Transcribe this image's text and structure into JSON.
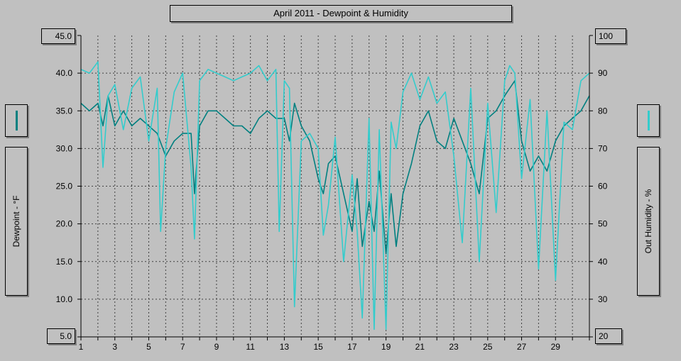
{
  "chart_data": {
    "type": "line",
    "title": "April 2011 - Dewpoint & Humidity",
    "xlabel": "",
    "x_ticks": [
      "1",
      "3",
      "5",
      "7",
      "9",
      "11",
      "13",
      "15",
      "17",
      "19",
      "21",
      "23",
      "25",
      "27",
      "29"
    ],
    "xlim": [
      1,
      31
    ],
    "left_axis": {
      "label": "Dewpoint - °F",
      "ylim": [
        5,
        45
      ],
      "ticks": [
        "45.0",
        "40.0",
        "35.0",
        "30.0",
        "25.0",
        "20.0",
        "15.0",
        "10.0",
        "5.0"
      ],
      "min_label": "5.0",
      "max_label": "45.0"
    },
    "right_axis": {
      "label": "Out Humidity - %",
      "ylim": [
        20,
        100
      ],
      "ticks": [
        "100",
        "90",
        "80",
        "70",
        "60",
        "50",
        "40",
        "30",
        "20"
      ],
      "min_label": "20",
      "max_label": "100"
    },
    "grid": true,
    "series": [
      {
        "axis": "left",
        "color": "#008080",
        "x": [
          1,
          1.5,
          2,
          2.3,
          2.6,
          3,
          3.5,
          4,
          4.5,
          5,
          5.5,
          6,
          6.5,
          7,
          7.5,
          7.7,
          8,
          8.5,
          9,
          9.5,
          10,
          10.5,
          11,
          11.5,
          12,
          12.5,
          13,
          13.3,
          13.6,
          14,
          14.5,
          15,
          15.3,
          15.6,
          16,
          16.5,
          17,
          17.3,
          17.6,
          18,
          18.3,
          18.6,
          19,
          19.3,
          19.6,
          20,
          20.5,
          21,
          21.5,
          22,
          22.5,
          23,
          23.5,
          24,
          24.5,
          25,
          25.5,
          26,
          26.3,
          26.6,
          27,
          27.5,
          28,
          28.5,
          29,
          29.5,
          30,
          30.5,
          31
        ],
        "y": [
          36,
          35,
          36,
          33,
          37,
          33,
          35,
          33,
          34,
          33,
          32,
          29,
          31,
          32,
          32,
          24,
          33,
          35,
          35,
          34,
          33,
          33,
          32,
          34,
          35,
          34,
          34,
          31,
          36,
          33,
          31,
          26,
          24,
          28,
          29,
          24,
          19,
          26,
          17,
          23,
          19,
          27,
          16,
          24,
          17,
          24,
          28,
          33,
          35,
          31,
          30,
          34,
          31,
          28,
          24,
          34,
          35,
          37,
          38,
          39,
          31,
          27,
          29,
          27,
          31,
          33,
          34,
          35,
          37
        ]
      },
      {
        "axis": "right",
        "color": "#33cccc",
        "x": [
          1,
          1.5,
          2,
          2.3,
          2.6,
          3,
          3.5,
          4,
          4.5,
          5,
          5.5,
          5.7,
          6,
          6.5,
          7,
          7.5,
          7.7,
          8,
          8.5,
          9,
          9.5,
          10,
          10.5,
          11,
          11.5,
          12,
          12.5,
          12.7,
          13,
          13.3,
          13.6,
          14,
          14.5,
          15,
          15.3,
          15.6,
          16,
          16.5,
          17,
          17.3,
          17.6,
          18,
          18.3,
          18.6,
          19,
          19.3,
          19.6,
          20,
          20.5,
          21,
          21.5,
          22,
          22.5,
          23,
          23.5,
          24,
          24.5,
          25,
          25.5,
          26,
          26.3,
          26.6,
          27,
          27.5,
          28,
          28.5,
          29,
          29.5,
          30,
          30.5,
          31
        ],
        "y": [
          91,
          90,
          93,
          65,
          84,
          87,
          75,
          86,
          89,
          72,
          86,
          48,
          70,
          85,
          90,
          65,
          46,
          88,
          91,
          90,
          89,
          88,
          89,
          90,
          92,
          88,
          91,
          48,
          88,
          86,
          28,
          72,
          74,
          70,
          47,
          55,
          73,
          40,
          63,
          48,
          25,
          78,
          22,
          75,
          22,
          77,
          70,
          85,
          90,
          83,
          89,
          82,
          85,
          68,
          45,
          86,
          40,
          82,
          53,
          88,
          92,
          90,
          62,
          83,
          38,
          80,
          35,
          77,
          75,
          88,
          90
        ]
      }
    ]
  }
}
